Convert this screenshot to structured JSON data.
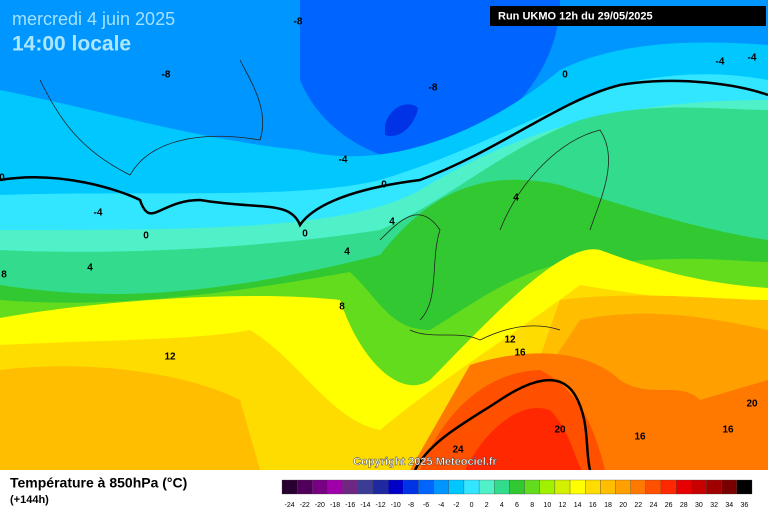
{
  "header": {
    "date": "mercredi 4 juin 2025",
    "time": "14:00 locale",
    "run": "Run UKMO 12h du 29/05/2025"
  },
  "map": {
    "contour_labels": [
      -8,
      -8,
      -8,
      0,
      -4,
      -4,
      -4,
      0,
      -4,
      0,
      0,
      4,
      4,
      4,
      4,
      8,
      12,
      12,
      16,
      20,
      24,
      16,
      16,
      20,
      8,
      0
    ]
  },
  "copyright": "Copyright 2025 Meteociel.fr",
  "footer": {
    "title": "Température à 850hPa (°C)",
    "subtitle": "(+144h)"
  },
  "scale": {
    "labels": [
      -24,
      -22,
      -20,
      -18,
      -16,
      -14,
      -12,
      -10,
      -8,
      -6,
      -4,
      -2,
      0,
      2,
      4,
      6,
      8,
      10,
      12,
      14,
      16,
      18,
      20,
      22,
      24,
      26,
      28,
      30,
      32,
      34,
      36
    ],
    "colors": [
      "#280030",
      "#50005a",
      "#780082",
      "#a000aa",
      "#6e2882",
      "#3c3c96",
      "#1e28a0",
      "#0000c8",
      "#0032e6",
      "#0064ff",
      "#0096ff",
      "#00c8ff",
      "#32e6ff",
      "#50f0c8",
      "#32dc8c",
      "#32c832",
      "#64dc1e",
      "#a0f000",
      "#d2f000",
      "#ffff00",
      "#ffdc00",
      "#ffbe00",
      "#ffa000",
      "#ff7800",
      "#ff5000",
      "#ff2800",
      "#e60000",
      "#c80000",
      "#a00000",
      "#780000",
      "#000000"
    ]
  }
}
